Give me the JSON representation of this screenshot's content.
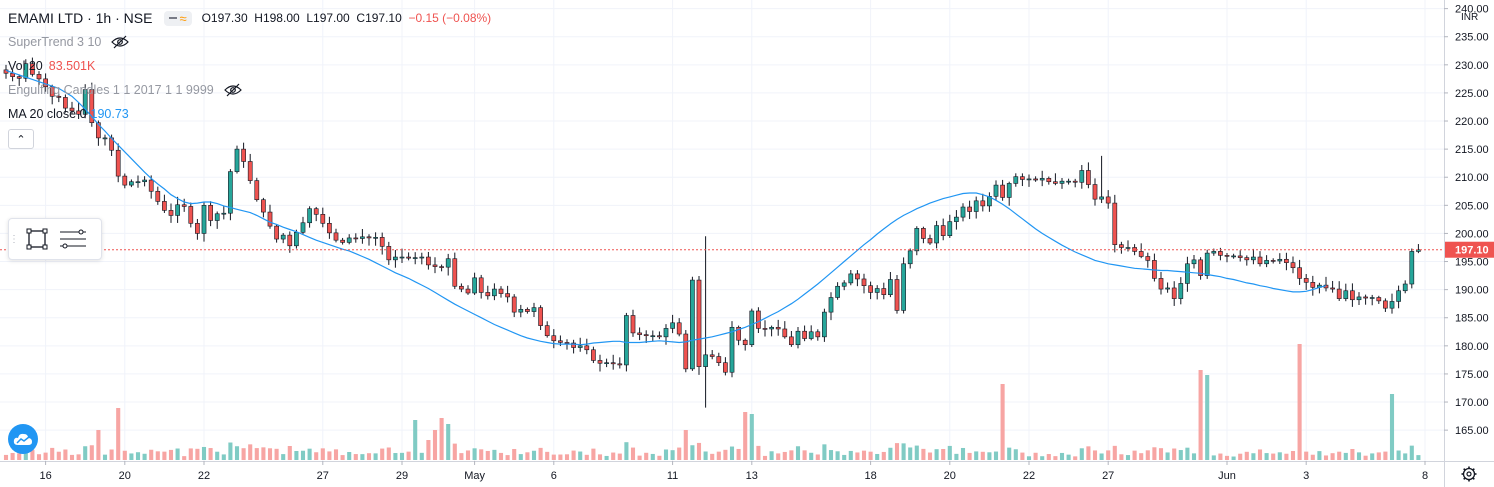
{
  "header": {
    "symbol_title": "EMAMI LTD · 1h · NSE",
    "ohlc": {
      "open": "O197.30",
      "high": "H198.00",
      "low": "L197.00",
      "close": "C197.10",
      "change": "−0.15 (−0.08%)"
    }
  },
  "indicators": [
    {
      "name": "SuperTrend 3 10",
      "value": "",
      "hidden": true
    },
    {
      "name": "Vol 20",
      "value": "83.501K",
      "hidden": false
    },
    {
      "name": "Engulfing Candles 1 1 2017 1 1 9999",
      "value": "",
      "hidden": true
    },
    {
      "name": "MA 20 close 0",
      "value": "190.73",
      "hidden": false
    }
  ],
  "price_axis": {
    "currency": "INR",
    "current_price_label": "197.10"
  },
  "colors": {
    "up": "#26a69a",
    "down": "#ef5350",
    "up_volume": "#80cbc4",
    "down_volume": "#f7a5a3",
    "ma": "#2196f3",
    "price_line": "#ef5350"
  },
  "icons": {
    "eye_off": "eye-off-icon",
    "collapse": "chevron-up-icon",
    "settings": "gear-icon",
    "logo": "tradingview-cloud-icon",
    "rect": "rectangle-tool-icon",
    "lines": "lines-tool-icon"
  },
  "chart_data": {
    "type": "candlestick",
    "ylim": [
      162,
      241
    ],
    "y_ticks": [
      165,
      170,
      175,
      180,
      185,
      190,
      195,
      200,
      205,
      210,
      215,
      220,
      225,
      230,
      235,
      240
    ],
    "current_price": 197.1,
    "x_ticks": [
      {
        "label": "16",
        "bar": 6
      },
      {
        "label": "20",
        "bar": 18
      },
      {
        "label": "22",
        "bar": 30
      },
      {
        "label": "27",
        "bar": 48
      },
      {
        "label": "29",
        "bar": 60
      },
      {
        "label": "May",
        "bar": 71
      },
      {
        "label": "6",
        "bar": 83
      },
      {
        "label": "11",
        "bar": 101
      },
      {
        "label": "13",
        "bar": 113
      },
      {
        "label": "18",
        "bar": 131
      },
      {
        "label": "20",
        "bar": 143
      },
      {
        "label": "22",
        "bar": 155
      },
      {
        "label": "27",
        "bar": 167
      },
      {
        "label": "Jun",
        "bar": 185
      },
      {
        "label": "3",
        "bar": 197
      },
      {
        "label": "8",
        "bar": 215
      }
    ],
    "close": [
      228.5,
      227.9,
      227.6,
      230.2,
      228.3,
      227.5,
      226.1,
      224.4,
      224.2,
      222.3,
      221.8,
      221.2,
      225.6,
      219.7,
      217.0,
      217.0,
      214.8,
      210.2,
      208.6,
      209.2,
      209.2,
      209.5,
      207.5,
      205.7,
      204.1,
      203.2,
      205.1,
      204.8,
      201.8,
      200.0,
      205.0,
      202.3,
      203.5,
      203.6,
      211.0,
      215.0,
      212.8,
      209.4,
      206.0,
      203.8,
      201.3,
      199.0,
      199.7,
      197.8,
      200.2,
      201.9,
      204.4,
      203.4,
      201.8,
      200.1,
      198.8,
      198.4,
      199.2,
      199.1,
      199.4,
      199.2,
      199.3,
      197.7,
      195.3,
      195.8,
      195.8,
      195.6,
      195.7,
      195.8,
      194.4,
      194.1,
      194.0,
      195.5,
      190.6,
      190.1,
      189.4,
      192.1,
      189.5,
      188.9,
      190.1,
      189.3,
      188.7,
      186.0,
      186.5,
      186.1,
      186.8,
      183.6,
      181.8,
      180.9,
      180.6,
      180.5,
      179.7,
      180.0,
      179.3,
      177.4,
      176.9,
      177.0,
      176.8,
      176.6,
      185.4,
      182.3,
      182.0,
      181.8,
      181.8,
      181.6,
      183.1,
      184.1,
      182.1,
      175.9,
      191.7,
      176.3,
      178.4,
      178.1,
      177.0,
      175.3,
      183.3,
      181.0,
      180.2,
      186.2,
      183.1,
      183.0,
      183.3,
      183.0,
      181.6,
      180.2,
      182.6,
      181.3,
      182.5,
      181.6,
      186.0,
      188.6,
      190.6,
      191.2,
      192.8,
      191.9,
      190.7,
      189.5,
      190.2,
      189.1,
      191.8,
      186.3,
      194.6,
      196.9,
      200.9,
      199.1,
      198.3,
      201.4,
      199.6,
      202.1,
      202.9,
      204.7,
      203.9,
      205.8,
      204.9,
      206.6,
      208.6,
      206.4,
      208.9,
      210.1,
      209.6,
      209.7,
      209.5,
      209.8,
      209.2,
      208.9,
      209.3,
      209.3,
      209.1,
      211.2,
      208.7,
      206.1,
      206.5,
      205.4,
      198.0,
      197.5,
      197.5,
      196.8,
      195.9,
      195.2,
      192.0,
      190.1,
      190.3,
      188.4,
      191.1,
      194.6,
      195.3,
      192.5,
      196.5,
      196.8,
      196.1,
      196.0,
      196.0,
      195.7,
      195.3,
      195.8,
      194.6,
      195.2,
      195.1,
      195.4,
      194.8,
      193.9,
      192.0,
      191.3,
      190.4,
      190.8,
      190.3,
      190.1,
      188.4,
      189.8,
      188.2,
      188.7,
      188.5,
      188.6,
      188.0,
      186.7,
      187.9,
      189.8,
      191.0,
      196.8,
      197.1
    ],
    "ma20": [
      229.0,
      228.6,
      228.2,
      227.8,
      227.4,
      227.0,
      226.6,
      226.2,
      225.8,
      225.1,
      224.4,
      223.3,
      222.1,
      220.8,
      219.4,
      218.2,
      216.9,
      215.7,
      214.5,
      213.3,
      212.1,
      210.9,
      209.8,
      208.8,
      207.9,
      206.9,
      206.2,
      205.6,
      205.3,
      205.4,
      205.6,
      205.6,
      205.3,
      204.9,
      204.6,
      204.3,
      204.0,
      203.7,
      203.2,
      202.6,
      202.0,
      201.6,
      201.1,
      200.7,
      200.3,
      199.8,
      199.3,
      198.8,
      198.4,
      198.0,
      197.6,
      197.2,
      196.9,
      196.4,
      195.9,
      195.4,
      194.8,
      194.2,
      193.6,
      193.0,
      192.5,
      192.0,
      191.4,
      190.8,
      190.2,
      189.5,
      188.8,
      188.1,
      187.4,
      186.8,
      186.2,
      185.6,
      185.0,
      184.4,
      183.8,
      183.3,
      182.8,
      182.3,
      181.8,
      181.4,
      181.1,
      180.8,
      180.6,
      180.4,
      180.3,
      180.3,
      180.3,
      180.2,
      180.3,
      180.5,
      180.6,
      180.7,
      180.8,
      180.8,
      180.6,
      180.6,
      180.6,
      180.7,
      180.8,
      180.9,
      180.8,
      180.7,
      180.6,
      180.7,
      181.0,
      181.2,
      181.4,
      181.6,
      181.9,
      182.2,
      182.5,
      182.9,
      183.3,
      183.8,
      184.3,
      184.9,
      185.5,
      186.1,
      186.8,
      187.5,
      188.3,
      189.2,
      190.1,
      191.0,
      192.0,
      193.0,
      194.0,
      195.0,
      196.0,
      197.0,
      198.0,
      198.9,
      199.9,
      200.8,
      201.7,
      202.5,
      203.2,
      203.8,
      204.4,
      204.9,
      205.4,
      205.8,
      206.2,
      206.5,
      206.8,
      207.1,
      207.2,
      207.2,
      206.9,
      206.5,
      205.9,
      205.2,
      204.4,
      203.5,
      202.6,
      201.7,
      200.8,
      200.0,
      199.3,
      198.6,
      197.9,
      197.3,
      196.7,
      196.2,
      195.7,
      195.2,
      194.9,
      194.6,
      194.4,
      194.2,
      194.0,
      193.8,
      193.7,
      193.6,
      193.5,
      193.4,
      193.4,
      193.3,
      193.2,
      193.1,
      193.0,
      192.9,
      192.7,
      192.5,
      192.3,
      192.0,
      191.8,
      191.5,
      191.2,
      191.0,
      190.7,
      190.5,
      190.2,
      190.0,
      189.8,
      189.6,
      189.6,
      189.7,
      190.0,
      190.4,
      190.7
    ],
    "volume_spikes_in_bars": true
  }
}
